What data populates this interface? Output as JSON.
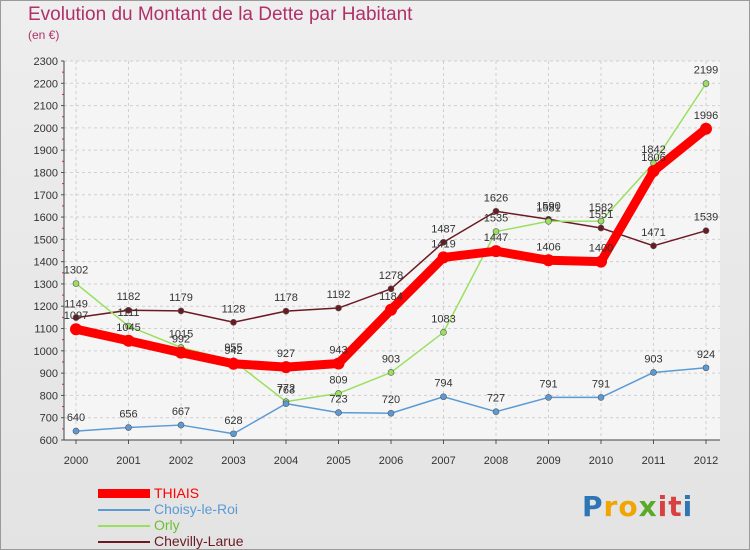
{
  "chart_data": {
    "type": "line",
    "title": "Evolution du Montant de la Dette par Habitant",
    "subtitle": "(en €)",
    "x": [
      "2000",
      "2001",
      "2002",
      "2003",
      "2004",
      "2005",
      "2006",
      "2007",
      "2008",
      "2009",
      "2010",
      "2011",
      "2012"
    ],
    "ylim": [
      600,
      2300
    ],
    "yticks": [
      600,
      700,
      800,
      900,
      1000,
      1100,
      1200,
      1300,
      1400,
      1500,
      1600,
      1700,
      1800,
      1900,
      2000,
      2100,
      2200,
      2300
    ],
    "grid": true,
    "legend_position": "bottom-left",
    "series": [
      {
        "name": "Chevilly-Larue",
        "color": "#6b1a22",
        "values": [
          1149,
          1182,
          1179,
          1128,
          1178,
          1192,
          1278,
          1487,
          1626,
          1590,
          1551,
          1471,
          1539
        ]
      },
      {
        "name": "Orly",
        "color": "#99e060",
        "values": [
          1302,
          1111,
          1015,
          955,
          772,
          809,
          903,
          1083,
          1535,
          1581,
          1582,
          1842,
          2199
        ]
      },
      {
        "name": "Choisy-le-Roi",
        "color": "#5b9bd5",
        "values": [
          640,
          656,
          667,
          628,
          763,
          723,
          720,
          794,
          727,
          791,
          791,
          903,
          924
        ]
      },
      {
        "name": "THIAIS",
        "color": "#ff0000",
        "values": [
          1097,
          1045,
          992,
          942,
          927,
          943,
          1184,
          1419,
          1447,
          1406,
          1400,
          1806,
          1996
        ]
      }
    ]
  },
  "legend": [
    {
      "label": "THIAIS",
      "color": "#ff0000"
    },
    {
      "label": "Choisy-le-Roi",
      "color": "#5b9bd5"
    },
    {
      "label": "Orly",
      "color": "#99e060"
    },
    {
      "label": "Chevilly-Larue",
      "color": "#6b1a22"
    }
  ],
  "logo": {
    "letters": [
      "P",
      "r",
      "o",
      "x",
      "i",
      "t",
      "i"
    ],
    "colors": [
      "#2e75b6",
      "#f0a500",
      "#f0a500",
      "#5aaa2a",
      "#d94040",
      "#d94040",
      "#2e75b6"
    ]
  }
}
